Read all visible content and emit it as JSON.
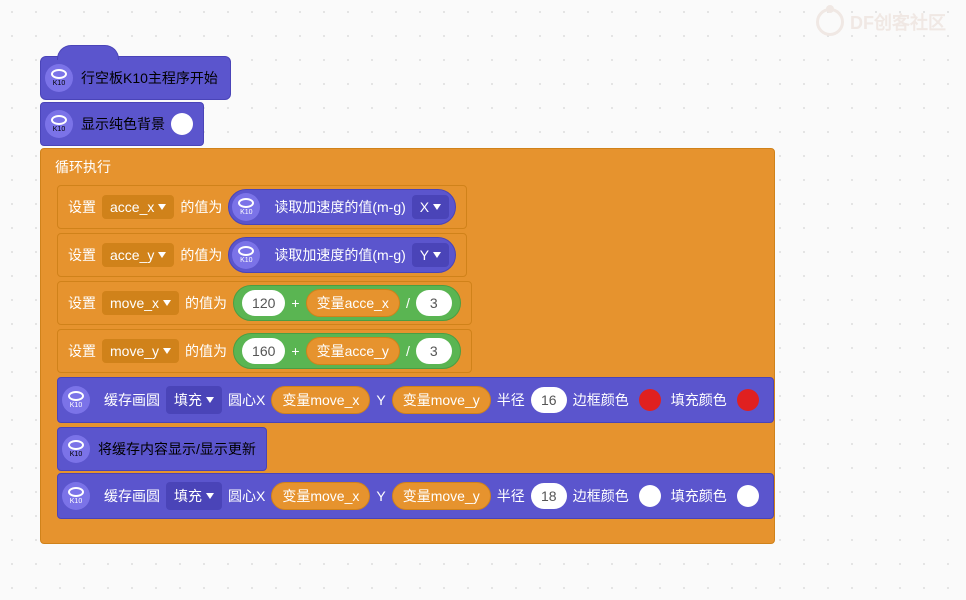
{
  "watermark": {
    "text": "DF创客社区"
  },
  "colors": {
    "purple": "#5b55cd",
    "purple_dark": "#4a44b8",
    "orange": "#e6932e",
    "orange_dark": "#d0821a",
    "green": "#5ab552",
    "red": "#e02020",
    "white": "#ffffff"
  },
  "icon_label": "K10",
  "hat": {
    "label": "行空板K10主程序开始"
  },
  "bg_block": {
    "label": "显示纯色背景",
    "color": "#ffffff"
  },
  "loop": {
    "header": "循环执行"
  },
  "set_text": "设置",
  "value_text": "的值为",
  "read_accel_text": "读取加速度的值(m-g)",
  "var_prefix": "变量 ",
  "rows": {
    "r1": {
      "var": "acce_x",
      "axis": "X"
    },
    "r2": {
      "var": "acce_y",
      "axis": "Y"
    },
    "r3": {
      "var": "move_x",
      "base": "120",
      "term": "acce_x",
      "div": "3"
    },
    "r4": {
      "var": "move_y",
      "base": "160",
      "term": "acce_y",
      "div": "3"
    }
  },
  "circle": {
    "prefix": "缓存画圆",
    "fill": "填充",
    "cx": "圆心X",
    "cy": "Y",
    "radius_label": "半径",
    "border_label": "边框颜色",
    "fill_label": "填充颜色",
    "r1": {
      "x": "move_x",
      "y": "move_y",
      "r": "16",
      "border": "#e02020",
      "fill": "#e02020"
    },
    "r2": {
      "x": "move_x",
      "y": "move_y",
      "r": "18",
      "border": "#ffffff",
      "fill": "#ffffff"
    }
  },
  "refresh": {
    "label": "将缓存内容显示/显示更新"
  }
}
